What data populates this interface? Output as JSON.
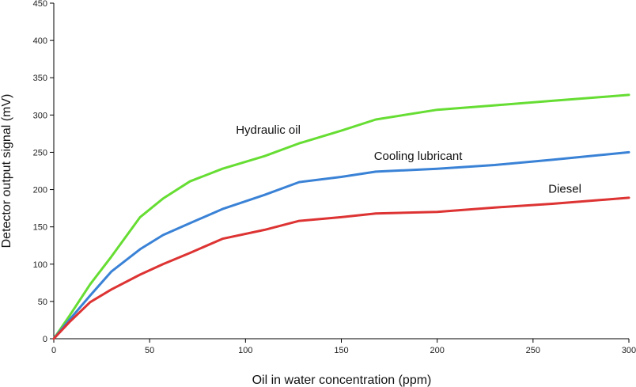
{
  "chart_data": {
    "type": "line",
    "title": "",
    "xlabel": "Oil in water concentration (ppm)",
    "ylabel": "Detector output signal (mV)",
    "xlim": [
      0,
      300
    ],
    "ylim": [
      0,
      450
    ],
    "xticks": [
      0,
      50,
      100,
      150,
      200,
      250,
      300
    ],
    "yticks": [
      0,
      50,
      100,
      150,
      200,
      250,
      300,
      350,
      400,
      450
    ],
    "grid": false,
    "series": [
      {
        "name": "Hydraulic oil",
        "color": "#66dd33",
        "x": [
          0,
          8,
          19,
          30,
          45,
          57,
          71,
          88,
          110,
          128,
          150,
          168,
          200,
          230,
          260,
          300
        ],
        "y": [
          0,
          30,
          73,
          110,
          163,
          188,
          211,
          228,
          245,
          262,
          279,
          294,
          307,
          313,
          319,
          327
        ]
      },
      {
        "name": "Cooling lubricant",
        "color": "#3a82d6",
        "x": [
          0,
          8,
          19,
          30,
          45,
          57,
          71,
          88,
          110,
          128,
          150,
          168,
          200,
          230,
          260,
          300
        ],
        "y": [
          0,
          25,
          58,
          90,
          120,
          139,
          155,
          174,
          193,
          210,
          217,
          224,
          228,
          233,
          240,
          250
        ]
      },
      {
        "name": "Diesel",
        "color": "#dd3333",
        "x": [
          0,
          8,
          19,
          30,
          45,
          57,
          71,
          88,
          110,
          128,
          150,
          168,
          200,
          230,
          260,
          300
        ],
        "y": [
          0,
          22,
          49,
          66,
          86,
          100,
          115,
          134,
          146,
          158,
          163,
          168,
          170,
          176,
          181,
          189
        ]
      }
    ],
    "annotations": [
      {
        "text": "Hydraulic oil",
        "x": 95,
        "y": 275
      },
      {
        "text": "Cooling lubricant",
        "x": 167,
        "y": 240
      },
      {
        "text": "Diesel",
        "x": 258,
        "y": 196
      }
    ]
  }
}
